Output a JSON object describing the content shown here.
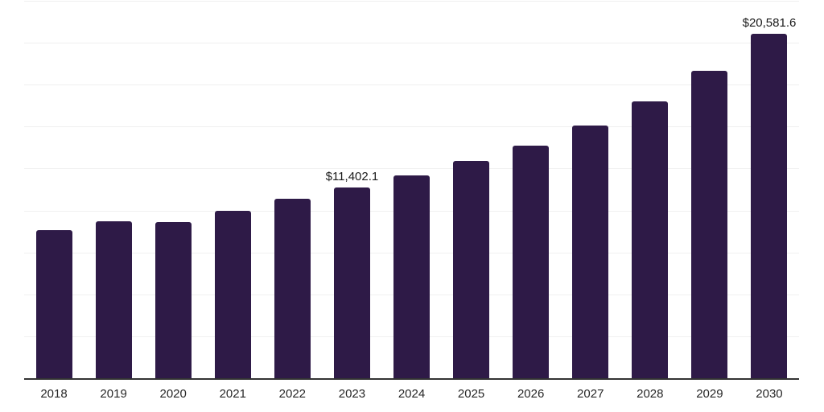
{
  "chart_data": {
    "type": "bar",
    "title": "",
    "xlabel": "",
    "ylabel": "",
    "categories": [
      "2018",
      "2019",
      "2020",
      "2021",
      "2022",
      "2023",
      "2024",
      "2025",
      "2026",
      "2027",
      "2028",
      "2029",
      "2030"
    ],
    "values": [
      8900,
      9390,
      9340,
      10050,
      10730,
      11402.1,
      12130,
      13000,
      13910,
      15110,
      16560,
      18390,
      20581.6
    ],
    "value_labels": [
      "",
      "",
      "",
      "",
      "",
      "$11,402.1",
      "",
      "",
      "",
      "",
      "",
      "",
      "$20,581.6"
    ],
    "ylim": [
      0,
      22500
    ],
    "gridline_step": 2500,
    "grid": true,
    "legend_position": "none",
    "bar_color": "#2e1a47",
    "gridline_color": "#f0f0f0",
    "axis_color": "#333333",
    "value_label_color": "#1a1a1a",
    "tick_label_color": "#262626",
    "background_color": "#ffffff"
  }
}
